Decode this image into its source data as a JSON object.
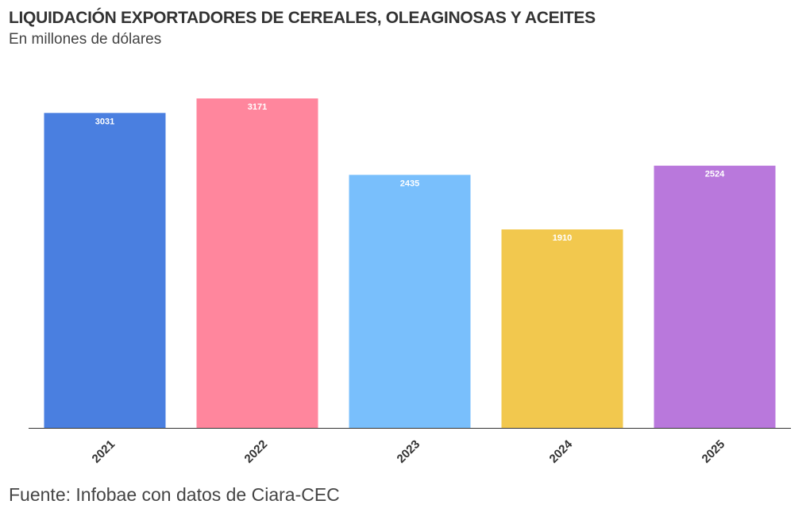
{
  "chart_data": {
    "type": "bar",
    "title": "LIQUIDACIÓN EXPORTADORES DE CEREALES, OLEAGINOSAS Y ACEITES",
    "subtitle": "En millones de dólares",
    "source": "Fuente: Infobae con datos de Ciara-CEC",
    "categories": [
      "2021",
      "2022",
      "2023",
      "2024",
      "2025"
    ],
    "values": [
      3031,
      3171,
      2435,
      1910,
      2524
    ],
    "data_labels": [
      "3031",
      "3171",
      "2435",
      "1910",
      "2524"
    ],
    "colors": [
      "#4a7fe0",
      "#ff869d",
      "#79bffc",
      "#f2c84e",
      "#b978dc"
    ],
    "ylim": [
      0,
      3171
    ],
    "xlabel": "",
    "ylabel": "",
    "grid": false,
    "legend": "none",
    "axis_color": "#333333"
  }
}
